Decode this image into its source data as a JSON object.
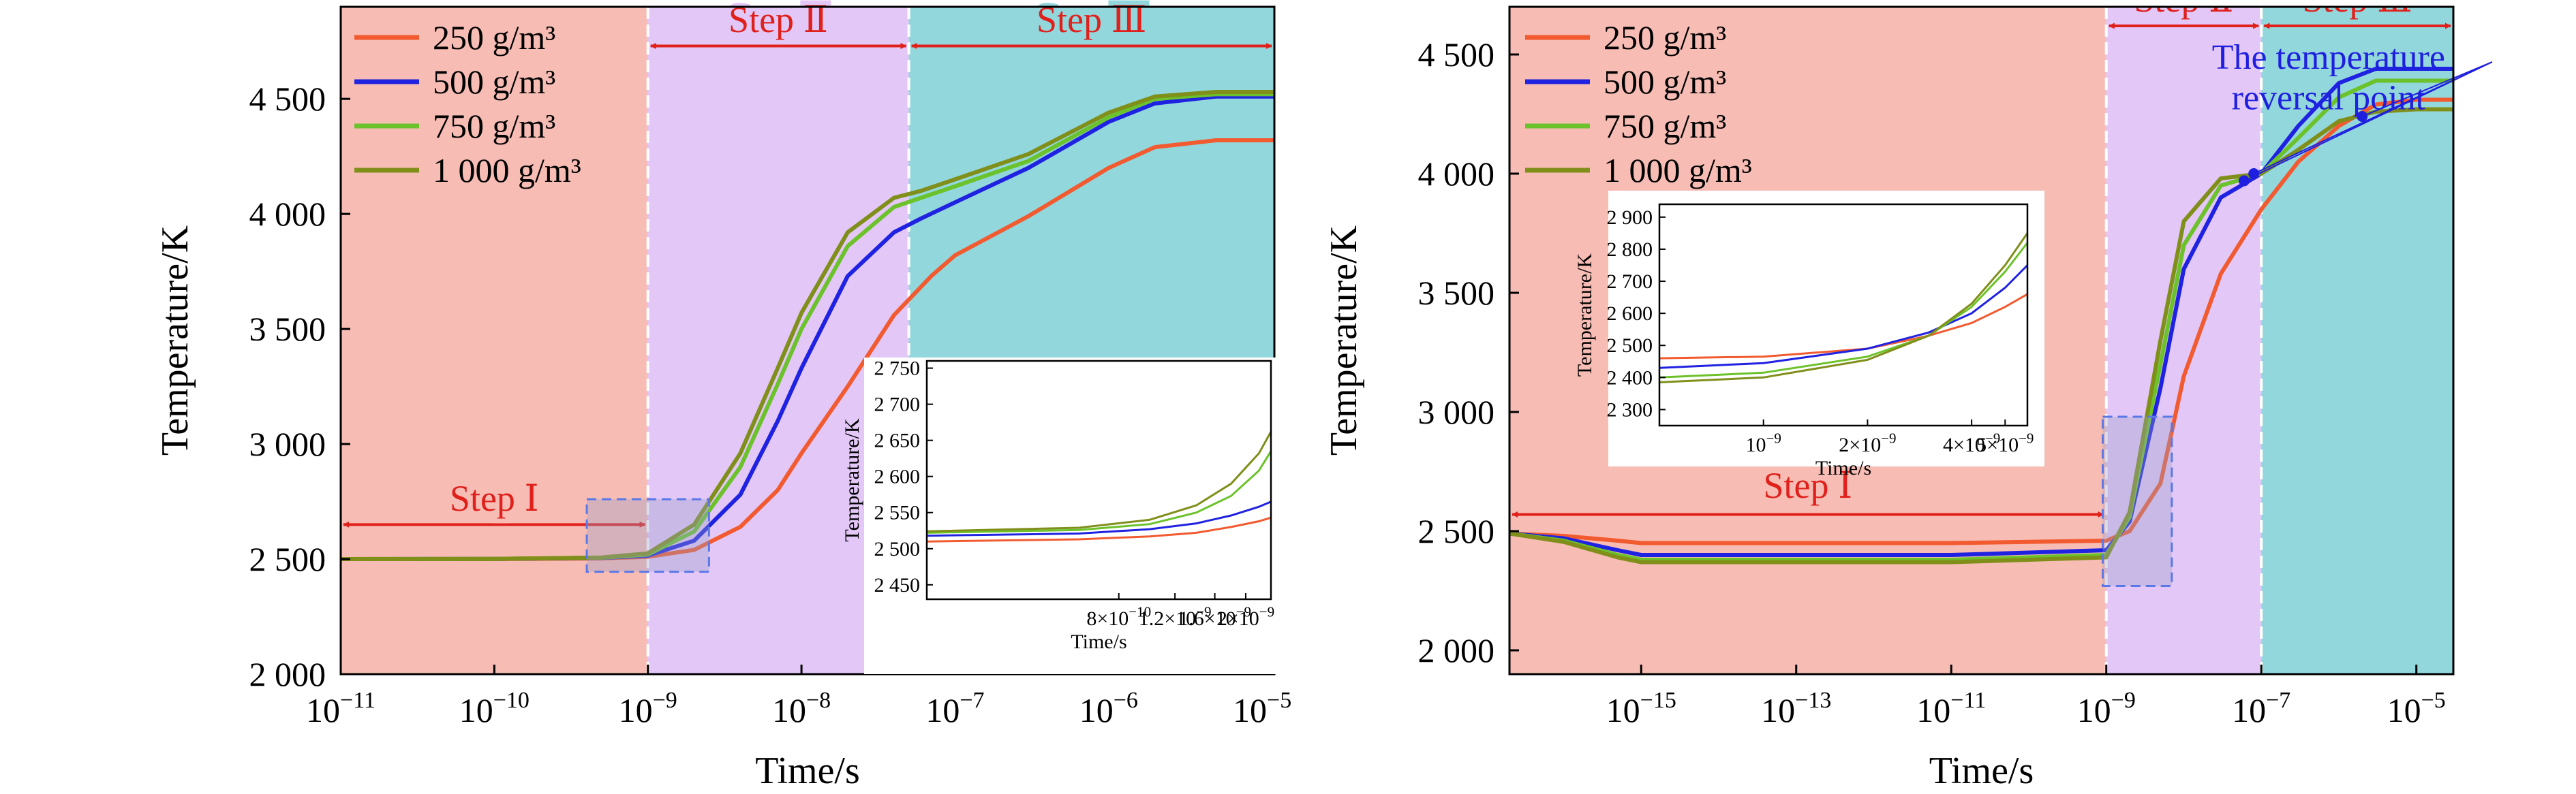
{
  "chart_data": [
    {
      "type": "line",
      "xlabel": "Time/s",
      "ylabel": "Temperature/K",
      "x_scale": "log",
      "xlim": [
        1e-11,
        1.2e-05
      ],
      "ylim": [
        2000,
        4900
      ],
      "x_ticks": [
        {
          "value": 1e-11,
          "base": "10",
          "exp": "−11"
        },
        {
          "value": 1e-10,
          "base": "10",
          "exp": "−10"
        },
        {
          "value": 1e-09,
          "base": "10",
          "exp": "−9"
        },
        {
          "value": 1e-08,
          "base": "10",
          "exp": "−8"
        },
        {
          "value": 1e-07,
          "base": "10",
          "exp": "−7"
        },
        {
          "value": 1e-06,
          "base": "10",
          "exp": "−6"
        },
        {
          "value": 1e-05,
          "base": "10",
          "exp": "−5"
        }
      ],
      "y_ticks": [
        {
          "value": 2000,
          "label": "2 000"
        },
        {
          "value": 2500,
          "label": "2 500"
        },
        {
          "value": 3000,
          "label": "3 000"
        },
        {
          "value": 3500,
          "label": "3 500"
        },
        {
          "value": 4000,
          "label": "4 000"
        },
        {
          "value": 4500,
          "label": "4 500"
        }
      ],
      "regions": [
        {
          "x0": 1e-11,
          "x1": 1e-09,
          "color": "#f7bcb4"
        },
        {
          "x0": 1e-09,
          "x1": 5e-08,
          "color": "#e3c7f7"
        },
        {
          "x0": 5e-08,
          "x1": 1.2e-05,
          "color": "#92d7dc"
        }
      ],
      "steps": [
        {
          "label": "Step Ⅰ",
          "x0": 1e-11,
          "x1": 1e-09,
          "y": 2650,
          "label_y": 2710
        },
        {
          "label": "Step Ⅱ",
          "x0": 1e-09,
          "x1": 5e-08,
          "y": 4730,
          "label_y": 4790
        },
        {
          "label": "Step Ⅲ",
          "x0": 5e-08,
          "x1": 1.2e-05,
          "y": 4730,
          "label_y": 4790
        }
      ],
      "series": [
        {
          "name": "250 g/m³",
          "color": "#f25a30",
          "x": [
            1e-11,
            1e-10,
            5e-10,
            1e-09,
            2e-09,
            4e-09,
            7e-09,
            1e-08,
            2e-08,
            4e-08,
            7e-08,
            1e-07,
            3e-07,
            1e-06,
            2e-06,
            5e-06,
            1.2e-05
          ],
          "y": [
            2500,
            2500,
            2503,
            2510,
            2540,
            2640,
            2800,
            2960,
            3250,
            3560,
            3730,
            3820,
            3990,
            4200,
            4290,
            4320,
            4320
          ]
        },
        {
          "name": "500 g/m³",
          "color": "#1f22e0",
          "x": [
            1e-11,
            1e-10,
            5e-10,
            1e-09,
            2e-09,
            4e-09,
            7e-09,
            1e-08,
            2e-08,
            4e-08,
            6e-08,
            1e-07,
            3e-07,
            1e-06,
            2e-06,
            5e-06,
            1.2e-05
          ],
          "y": [
            2500,
            2501,
            2505,
            2515,
            2580,
            2780,
            3100,
            3330,
            3730,
            3920,
            3980,
            4050,
            4200,
            4400,
            4480,
            4510,
            4510
          ]
        },
        {
          "name": "750 g/m³",
          "color": "#6cc22a",
          "x": [
            1e-11,
            1e-10,
            5e-10,
            1e-09,
            2e-09,
            4e-09,
            7e-09,
            1e-08,
            2e-08,
            4e-08,
            6e-08,
            1e-07,
            3e-07,
            1e-06,
            2e-06,
            5e-06,
            1.2e-05
          ],
          "y": [
            2500,
            2501,
            2506,
            2520,
            2620,
            2900,
            3260,
            3500,
            3860,
            4030,
            4070,
            4120,
            4230,
            4420,
            4500,
            4520,
            4520
          ]
        },
        {
          "name": "1 000 g/m³",
          "color": "#808f1a",
          "x": [
            1e-11,
            1e-10,
            5e-10,
            1e-09,
            2e-09,
            4e-09,
            7e-09,
            1e-08,
            2e-08,
            4e-08,
            6e-08,
            1e-07,
            3e-07,
            1e-06,
            2e-06,
            5e-06,
            1.2e-05
          ],
          "y": [
            2500,
            2501,
            2507,
            2525,
            2650,
            2960,
            3330,
            3570,
            3920,
            4070,
            4100,
            4150,
            4260,
            4440,
            4510,
            4530,
            4530
          ]
        }
      ],
      "highlight_box": {
        "x0": 4e-10,
        "x1": 2.5e-09,
        "y0": 2445,
        "y1": 2760
      },
      "inset": {
        "xlabel": "Time/s",
        "ylabel": "Temperature/K",
        "xlim": [
          2e-10,
          2.4e-09
        ],
        "ylim": [
          2430,
          2760
        ],
        "x_ticks": [
          {
            "value": 8e-10,
            "mant": "8×10",
            "exp": "−10"
          },
          {
            "value": 1.2e-09,
            "mant": "1.2×10",
            "exp": "−9"
          },
          {
            "value": 1.6e-09,
            "mant": "1.6×10",
            "exp": "−9"
          },
          {
            "value": 2e-09,
            "mant": "2×10",
            "exp": "−9"
          }
        ],
        "y_ticks": [
          {
            "value": 2450,
            "label": "2 450"
          },
          {
            "value": 2500,
            "label": "2 500"
          },
          {
            "value": 2550,
            "label": "2 550"
          },
          {
            "value": 2600,
            "label": "2 600"
          },
          {
            "value": 2650,
            "label": "2 650"
          },
          {
            "value": 2700,
            "label": "2 700"
          },
          {
            "value": 2750,
            "label": "2 750"
          }
        ],
        "series": [
          {
            "color": "#f25a30",
            "x": [
              2e-10,
              6e-10,
              1e-09,
              1.4e-09,
              1.8e-09,
              2.2e-09,
              2.4e-09
            ],
            "y": [
              2510,
              2513,
              2517,
              2522,
              2530,
              2538,
              2543
            ]
          },
          {
            "color": "#1f22e0",
            "x": [
              2e-10,
              6e-10,
              1e-09,
              1.4e-09,
              1.8e-09,
              2.2e-09,
              2.4e-09
            ],
            "y": [
              2518,
              2521,
              2527,
              2535,
              2546,
              2558,
              2565
            ]
          },
          {
            "color": "#6cc22a",
            "x": [
              2e-10,
              6e-10,
              1e-09,
              1.4e-09,
              1.8e-09,
              2.2e-09,
              2.4e-09
            ],
            "y": [
              2522,
              2526,
              2534,
              2550,
              2573,
              2608,
              2635
            ]
          },
          {
            "color": "#808f1a",
            "x": [
              2e-10,
              6e-10,
              1e-09,
              1.4e-09,
              1.8e-09,
              2.2e-09,
              2.4e-09
            ],
            "y": [
              2524,
              2529,
              2540,
              2560,
              2590,
              2632,
              2662
            ]
          }
        ]
      }
    },
    {
      "type": "line",
      "xlabel": "Time/s",
      "ylabel": "Temperature/K",
      "x_scale": "log",
      "xlim": [
        2e-17,
        3e-05
      ],
      "ylim": [
        1900,
        4700
      ],
      "x_ticks": [
        {
          "value": 1e-15,
          "base": "10",
          "exp": "−15"
        },
        {
          "value": 1e-13,
          "base": "10",
          "exp": "−13"
        },
        {
          "value": 1e-11,
          "base": "10",
          "exp": "−11"
        },
        {
          "value": 1e-09,
          "base": "10",
          "exp": "−9"
        },
        {
          "value": 1e-07,
          "base": "10",
          "exp": "−7"
        },
        {
          "value": 1e-05,
          "base": "10",
          "exp": "−5"
        }
      ],
      "y_ticks": [
        {
          "value": 2000,
          "label": "2 000"
        },
        {
          "value": 2500,
          "label": "2 500"
        },
        {
          "value": 3000,
          "label": "3 000"
        },
        {
          "value": 3500,
          "label": "3 500"
        },
        {
          "value": 4000,
          "label": "4 000"
        },
        {
          "value": 4500,
          "label": "4 500"
        }
      ],
      "regions": [
        {
          "x0": 2e-17,
          "x1": 1e-09,
          "color": "#f7bcb4"
        },
        {
          "x0": 1e-09,
          "x1": 1e-07,
          "color": "#e3c7f7"
        },
        {
          "x0": 1e-07,
          "x1": 3e-05,
          "color": "#92d7dc"
        }
      ],
      "steps": [
        {
          "label": "Step Ⅰ",
          "x0": 2e-17,
          "x1": 1e-09,
          "y": 2570,
          "label_y": 2640
        },
        {
          "label": "Step Ⅱ",
          "x0": 1e-09,
          "x1": 1e-07,
          "y": 4620,
          "label_y": 4680
        },
        {
          "label": "Step Ⅲ",
          "x0": 1e-07,
          "x1": 3e-05,
          "y": 4620,
          "label_y": 4680
        }
      ],
      "series": [
        {
          "name": "250 g/m³",
          "color": "#f25a30",
          "x": [
            2e-17,
            1e-16,
            5e-16,
            1e-15,
            3e-15,
            1e-13,
            1e-11,
            1e-09,
            2e-09,
            5e-09,
            1e-08,
            3e-08,
            1e-07,
            3e-07,
            1e-06,
            3e-06,
            1e-05,
            3e-05
          ],
          "y": [
            2490,
            2480,
            2460,
            2450,
            2450,
            2450,
            2450,
            2460,
            2500,
            2700,
            3150,
            3580,
            3850,
            4050,
            4200,
            4290,
            4310,
            4310
          ]
        },
        {
          "name": "500 g/m³",
          "color": "#1f22e0",
          "x": [
            2e-17,
            1e-16,
            5e-16,
            1e-15,
            3e-15,
            1e-13,
            1e-11,
            1e-09,
            2e-09,
            5e-09,
            1e-08,
            3e-08,
            1e-07,
            3e-07,
            1e-06,
            3e-06,
            1e-05,
            3e-05
          ],
          "y": [
            2490,
            2470,
            2420,
            2400,
            2400,
            2400,
            2400,
            2420,
            2540,
            3100,
            3600,
            3900,
            4000,
            4200,
            4380,
            4440,
            4440,
            4440
          ]
        },
        {
          "name": "750 g/m³",
          "color": "#6cc22a",
          "x": [
            2e-17,
            1e-16,
            5e-16,
            1e-15,
            3e-15,
            1e-13,
            1e-11,
            1e-09,
            2e-09,
            5e-09,
            1e-08,
            3e-08,
            1e-07,
            3e-07,
            1e-06,
            3e-06,
            1e-05,
            3e-05
          ],
          "y": [
            2490,
            2460,
            2400,
            2380,
            2380,
            2380,
            2380,
            2400,
            2560,
            3200,
            3700,
            3950,
            4000,
            4150,
            4320,
            4390,
            4390,
            4390
          ]
        },
        {
          "name": "1 000 g/m³",
          "color": "#808f1a",
          "x": [
            2e-17,
            1e-16,
            5e-16,
            1e-15,
            3e-15,
            1e-13,
            1e-11,
            1e-09,
            2e-09,
            5e-09,
            1e-08,
            3e-08,
            1e-07,
            3e-07,
            1e-06,
            3e-06,
            1e-05,
            3e-05
          ],
          "y": [
            2490,
            2455,
            2390,
            2370,
            2370,
            2370,
            2370,
            2390,
            2580,
            3300,
            3800,
            3980,
            4000,
            4100,
            4220,
            4260,
            4270,
            4270
          ]
        }
      ],
      "highlight_box": {
        "x0": 9e-10,
        "x1": 7e-09,
        "y0": 2270,
        "y1": 2980
      },
      "annotation": {
        "lines": [
          "The temperature",
          "reversal point"
        ],
        "color": "#1f1fe0",
        "label_x": 7e-09,
        "label_y": 4440,
        "label_y2": 4270,
        "points": [
          {
            "x": 6e-08,
            "y": 3970
          },
          {
            "x": 8e-08,
            "y": 4000
          },
          {
            "x": 2e-06,
            "y": 4240
          }
        ]
      },
      "inset": {
        "xlabel": "Time/s",
        "ylabel": "Temperature/K",
        "xlim": [
          5e-10,
          5.8e-09
        ],
        "ylim": [
          2250,
          2940
        ],
        "x_ticks": [
          {
            "value": 1e-09,
            "mant": "10",
            "exp": "−9"
          },
          {
            "value": 2e-09,
            "mant": "2×10",
            "exp": "−9"
          },
          {
            "value": 4e-09,
            "mant": "4×10",
            "exp": "−9"
          },
          {
            "value": 5e-09,
            "mant": "5×10",
            "exp": "−9"
          }
        ],
        "y_ticks": [
          {
            "value": 2300,
            "label": "2 300"
          },
          {
            "value": 2400,
            "label": "2 400"
          },
          {
            "value": 2500,
            "label": "2 500"
          },
          {
            "value": 2600,
            "label": "2 600"
          },
          {
            "value": 2700,
            "label": "2 700"
          },
          {
            "value": 2800,
            "label": "2 800"
          },
          {
            "value": 2900,
            "label": "2 900"
          }
        ],
        "series": [
          {
            "color": "#f25a30",
            "x": [
              5e-10,
              1e-09,
              2e-09,
              3e-09,
              4e-09,
              5e-09,
              5.8e-09
            ],
            "y": [
              2460,
              2465,
              2490,
              2530,
              2570,
              2620,
              2660
            ]
          },
          {
            "color": "#1f22e0",
            "x": [
              5e-10,
              1e-09,
              2e-09,
              3e-09,
              4e-09,
              5e-09,
              5.8e-09
            ],
            "y": [
              2430,
              2445,
              2490,
              2540,
              2600,
              2680,
              2750
            ]
          },
          {
            "color": "#6cc22a",
            "x": [
              5e-10,
              1e-09,
              2e-09,
              3e-09,
              4e-09,
              5e-09,
              5.8e-09
            ],
            "y": [
              2400,
              2415,
              2465,
              2530,
              2620,
              2730,
              2820
            ]
          },
          {
            "color": "#808f1a",
            "x": [
              5e-10,
              1e-09,
              2e-09,
              3e-09,
              4e-09,
              5e-09,
              5.8e-09
            ],
            "y": [
              2385,
              2400,
              2455,
              2530,
              2630,
              2750,
              2850
            ]
          }
        ]
      }
    }
  ]
}
